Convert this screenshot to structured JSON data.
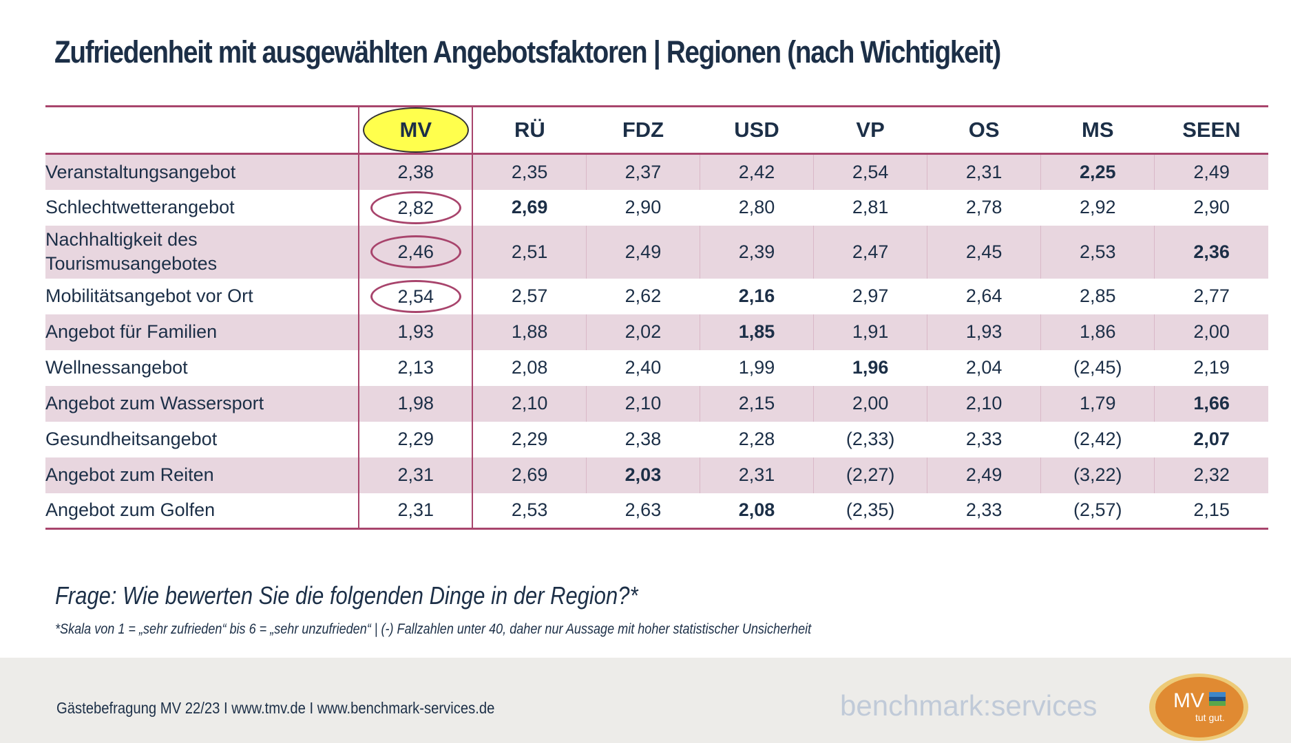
{
  "title": "Zufriedenheit mit ausgewählten Angebotsfaktoren | Regionen (nach Wichtigkeit)",
  "columns": [
    "MV",
    "RÜ",
    "FDZ",
    "USD",
    "VP",
    "OS",
    "MS",
    "SEEN"
  ],
  "rows": [
    {
      "label": "Veranstaltungsangebot",
      "values": [
        "2,38",
        "2,35",
        "2,37",
        "2,42",
        "2,54",
        "2,31",
        "2,25",
        "2,49"
      ],
      "bold": [
        6
      ],
      "ringed": false
    },
    {
      "label": "Schlechtwetterangebot",
      "values": [
        "2,82",
        "2,69",
        "2,90",
        "2,80",
        "2,81",
        "2,78",
        "2,92",
        "2,90"
      ],
      "bold": [
        1
      ],
      "ringed": true
    },
    {
      "label": "Nachhaltigkeit des Tourismusangebotes",
      "values": [
        "2,46",
        "2,51",
        "2,49",
        "2,39",
        "2,47",
        "2,45",
        "2,53",
        "2,36"
      ],
      "bold": [
        7
      ],
      "ringed": true
    },
    {
      "label": "Mobilitätsangebot vor Ort",
      "values": [
        "2,54",
        "2,57",
        "2,62",
        "2,16",
        "2,97",
        "2,64",
        "2,85",
        "2,77"
      ],
      "bold": [
        3
      ],
      "ringed": true
    },
    {
      "label": "Angebot für Familien",
      "values": [
        "1,93",
        "1,88",
        "2,02",
        "1,85",
        "1,91",
        "1,93",
        "1,86",
        "2,00"
      ],
      "bold": [
        3
      ],
      "ringed": false
    },
    {
      "label": "Wellnessangebot",
      "values": [
        "2,13",
        "2,08",
        "2,40",
        "1,99",
        "1,96",
        "2,04",
        "(2,45)",
        "2,19"
      ],
      "bold": [
        4
      ],
      "ringed": false
    },
    {
      "label": "Angebot zum Wassersport",
      "values": [
        "1,98",
        "2,10",
        "2,10",
        "2,15",
        "2,00",
        "2,10",
        "1,79",
        "1,66"
      ],
      "bold": [
        7
      ],
      "ringed": false
    },
    {
      "label": "Gesundheitsangebot",
      "values": [
        "2,29",
        "2,29",
        "2,38",
        "2,28",
        "(2,33)",
        "2,33",
        "(2,42)",
        "2,07"
      ],
      "bold": [
        7
      ],
      "ringed": false
    },
    {
      "label": "Angebot zum Reiten",
      "values": [
        "2,31",
        "2,69",
        "2,03",
        "2,31",
        "(2,27)",
        "2,49",
        "(3,22)",
        "2,32"
      ],
      "bold": [
        2
      ],
      "ringed": false
    },
    {
      "label": "Angebot zum Golfen",
      "values": [
        "2,31",
        "2,53",
        "2,63",
        "2,08",
        "(2,35)",
        "2,33",
        "(2,57)",
        "2,15"
      ],
      "bold": [
        3
      ],
      "ringed": false
    }
  ],
  "question": "Frage: Wie bewerten Sie die folgenden Dinge in der Region?*",
  "footnote": "*Skala von 1 = „sehr zufrieden“ bis  6 = „sehr unzufrieden“ | (-) Fallzahlen unter 40, daher nur Aussage mit hoher statistischer Unsicherheit",
  "footer": {
    "text": "Gästebefragung MV 22/23  I  www.tmv.de  I www.benchmark-services.de",
    "brand": "benchmark:services",
    "logo_text": "MV",
    "logo_tagline": "tut gut."
  },
  "colors": {
    "accent": "#a8446c",
    "row_band": "#e8d6df",
    "highlight": "#ffff4d",
    "text": "#1c2f47"
  }
}
